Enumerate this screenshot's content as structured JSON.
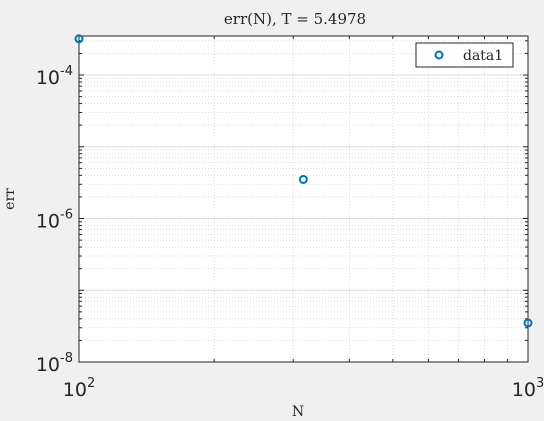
{
  "chart_data": {
    "type": "scatter",
    "title": "err(N), T = 5.4978",
    "xlabel": "N",
    "ylabel": "err",
    "xscale": "log",
    "yscale": "log",
    "xlim": [
      100,
      1000
    ],
    "ylim": [
      1e-08,
      0.00035
    ],
    "grid": true,
    "minor_grid": true,
    "legend_position": "top-right",
    "series": [
      {
        "name": "data1",
        "marker": "circle-open",
        "color": "#0072bd",
        "x": [
          100,
          316,
          1000
        ],
        "y": [
          0.00032,
          3.5e-06,
          3.5e-08
        ]
      }
    ],
    "xticks": [
      {
        "base": "10",
        "exp": "2",
        "value": 100
      },
      {
        "base": "10",
        "exp": "3",
        "value": 1000
      }
    ],
    "yticks": [
      {
        "base": "10",
        "exp": "-4",
        "value": 0.0001
      },
      {
        "base": "10",
        "exp": "-6",
        "value": 1e-06
      },
      {
        "base": "10",
        "exp": "-8",
        "value": 1e-08
      }
    ]
  }
}
